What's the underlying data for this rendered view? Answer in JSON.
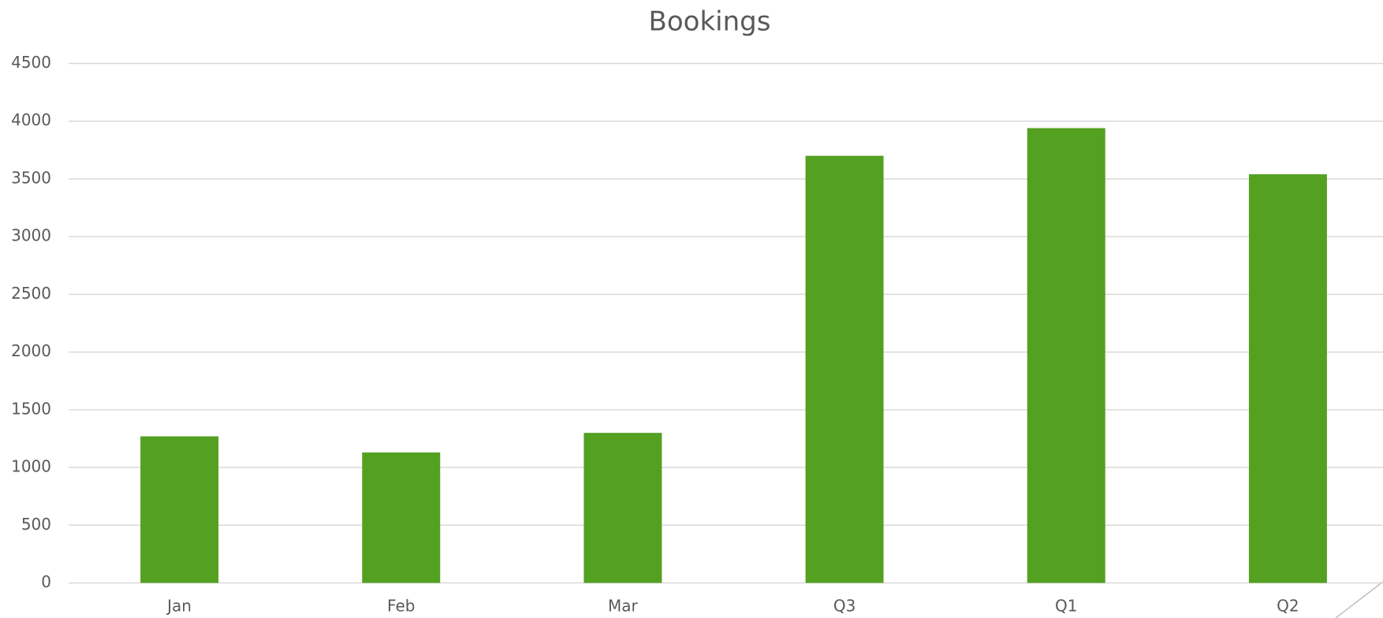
{
  "chart_data": {
    "type": "bar",
    "title": "Bookings",
    "categories": [
      "Jan",
      "Feb",
      "Mar",
      "Q3",
      "Q1",
      "Q2"
    ],
    "values": [
      1270,
      1130,
      1300,
      3700,
      3940,
      3540
    ],
    "color": "#54a021",
    "ylim": [
      0,
      4500
    ],
    "yticks": [
      0,
      500,
      1000,
      1500,
      2000,
      2500,
      3000,
      3500,
      4000,
      4500
    ],
    "grid": true
  }
}
